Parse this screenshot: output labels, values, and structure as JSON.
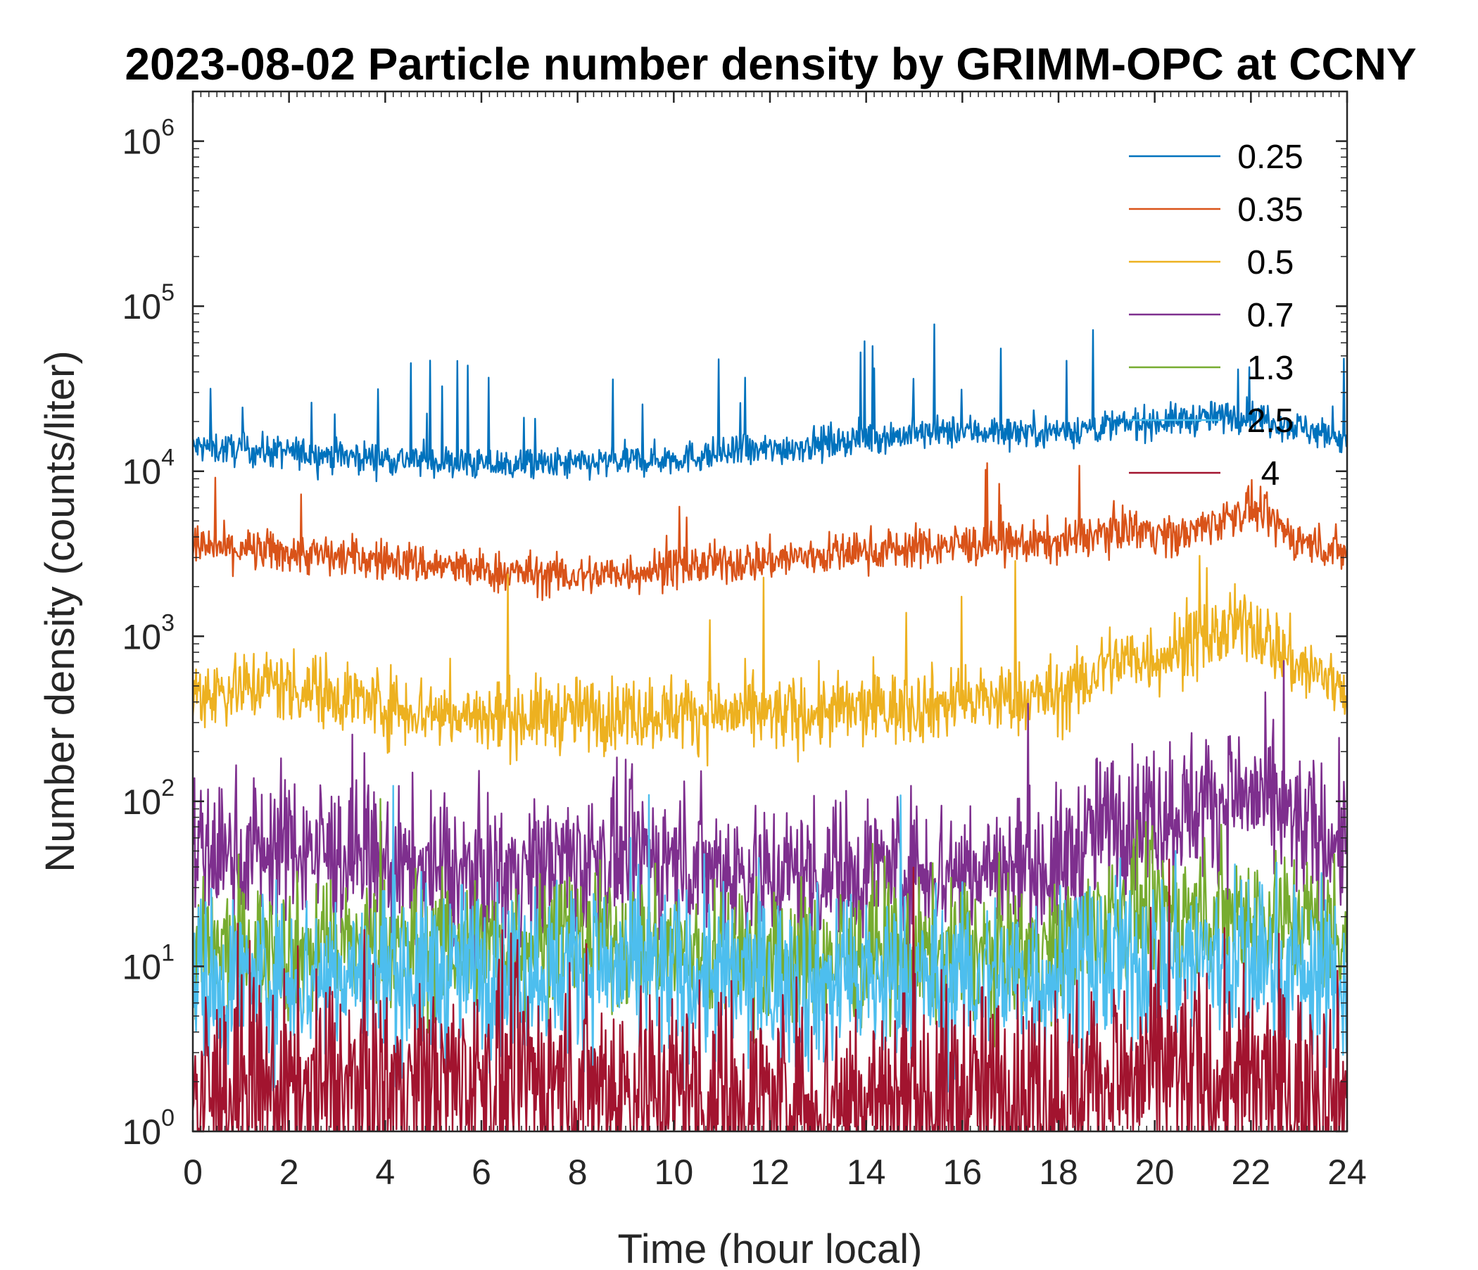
{
  "chart_data": {
    "type": "line",
    "title": "2023-08-02 Particle number density by GRIMM-OPC at CCNY",
    "xlabel": "Time (hour local)",
    "ylabel": "Number density (counts/liter)",
    "xlim": [
      0,
      24
    ],
    "ylim": [
      1,
      2000000
    ],
    "yscale": "log",
    "xticks": [
      "0",
      "2",
      "4",
      "6",
      "8",
      "10",
      "12",
      "14",
      "16",
      "18",
      "20",
      "22",
      "24"
    ],
    "yticks": [
      {
        "base": "10",
        "exp": "0"
      },
      {
        "base": "10",
        "exp": "1"
      },
      {
        "base": "10",
        "exp": "2"
      },
      {
        "base": "10",
        "exp": "3"
      },
      {
        "base": "10",
        "exp": "4"
      },
      {
        "base": "10",
        "exp": "5"
      },
      {
        "base": "10",
        "exp": "6"
      }
    ],
    "legend_position": "top-right",
    "series": [
      {
        "name": "0.25",
        "legend": "0.25",
        "color": "#0072BD",
        "noise": 0.07,
        "spike_rate": 0.02,
        "spike_mag": 0.45,
        "profile": [
          [
            0,
            14000
          ],
          [
            2,
            13000
          ],
          [
            4,
            12000
          ],
          [
            6,
            11000
          ],
          [
            8,
            11000
          ],
          [
            10,
            12000
          ],
          [
            12,
            13500
          ],
          [
            14,
            16000
          ],
          [
            16,
            17500
          ],
          [
            18,
            17500
          ],
          [
            20,
            20000
          ],
          [
            22,
            22000
          ],
          [
            24,
            15500
          ]
        ]
      },
      {
        "name": "0.35",
        "legend": "0.35",
        "color": "#D95319",
        "noise": 0.09,
        "spike_rate": 0.01,
        "spike_mag": 0.35,
        "profile": [
          [
            0,
            3500
          ],
          [
            2,
            3200
          ],
          [
            4,
            2900
          ],
          [
            6,
            2500
          ],
          [
            8,
            2300
          ],
          [
            10,
            2600
          ],
          [
            12,
            2900
          ],
          [
            14,
            3300
          ],
          [
            16,
            3600
          ],
          [
            18,
            3700
          ],
          [
            19.5,
            4600
          ],
          [
            20.5,
            4000
          ],
          [
            22,
            6000
          ],
          [
            23,
            3800
          ],
          [
            24,
            3200
          ]
        ]
      },
      {
        "name": "0.5",
        "legend": "0.5",
        "color": "#EDB120",
        "noise": 0.16,
        "spike_rate": 0.01,
        "spike_mag": 0.5,
        "profile": [
          [
            0,
            450
          ],
          [
            1.5,
            520
          ],
          [
            3,
            450
          ],
          [
            4,
            380
          ],
          [
            6,
            320
          ],
          [
            8,
            340
          ],
          [
            10,
            350
          ],
          [
            12,
            330
          ],
          [
            14,
            360
          ],
          [
            16,
            400
          ],
          [
            18,
            440
          ],
          [
            18.5,
            500
          ],
          [
            19,
            700
          ],
          [
            20,
            750
          ],
          [
            22,
            1200
          ],
          [
            23,
            650
          ],
          [
            24,
            500
          ]
        ]
      },
      {
        "name": "0.7",
        "legend": "0.7",
        "color": "#7E2F8E",
        "noise": 0.32,
        "spike_rate": 0.01,
        "spike_mag": 0.45,
        "profile": [
          [
            0,
            45
          ],
          [
            2,
            55
          ],
          [
            4,
            40
          ],
          [
            6,
            35
          ],
          [
            8,
            45
          ],
          [
            10,
            45
          ],
          [
            12,
            35
          ],
          [
            14,
            40
          ],
          [
            16,
            38
          ],
          [
            18,
            40
          ],
          [
            19,
            75
          ],
          [
            20,
            85
          ],
          [
            22,
            110
          ],
          [
            23,
            70
          ],
          [
            24,
            55
          ]
        ]
      },
      {
        "name": "1.3",
        "legend": "1.3",
        "color": "#77AC30",
        "noise": 0.3,
        "spike_rate": 0.01,
        "spike_mag": 0.4,
        "profile": [
          [
            0,
            12
          ],
          [
            4,
            13
          ],
          [
            8,
            14
          ],
          [
            12,
            11
          ],
          [
            16,
            12
          ],
          [
            18,
            13
          ],
          [
            19,
            20
          ],
          [
            22,
            22
          ],
          [
            24,
            17
          ]
        ]
      },
      {
        "name": "2.5",
        "legend": "2.5",
        "color": "#4DBEEE",
        "noise": 0.38,
        "spike_rate": 0.01,
        "spike_mag": 0.5,
        "profile": [
          [
            0,
            8
          ],
          [
            4,
            9
          ],
          [
            8,
            10
          ],
          [
            12,
            8
          ],
          [
            16,
            8
          ],
          [
            18,
            9
          ],
          [
            20,
            11
          ],
          [
            22,
            11
          ],
          [
            24,
            8
          ]
        ]
      },
      {
        "name": "4",
        "legend": "4",
        "color": "#A2142F",
        "noise": 0.48,
        "spike_rate": 0.01,
        "spike_mag": 0.6,
        "profile": [
          [
            0,
            1.6
          ],
          [
            6,
            2
          ],
          [
            8,
            2
          ],
          [
            12,
            1.5
          ],
          [
            18,
            1.7
          ],
          [
            20,
            2.2
          ],
          [
            24,
            1.6
          ]
        ]
      }
    ]
  }
}
